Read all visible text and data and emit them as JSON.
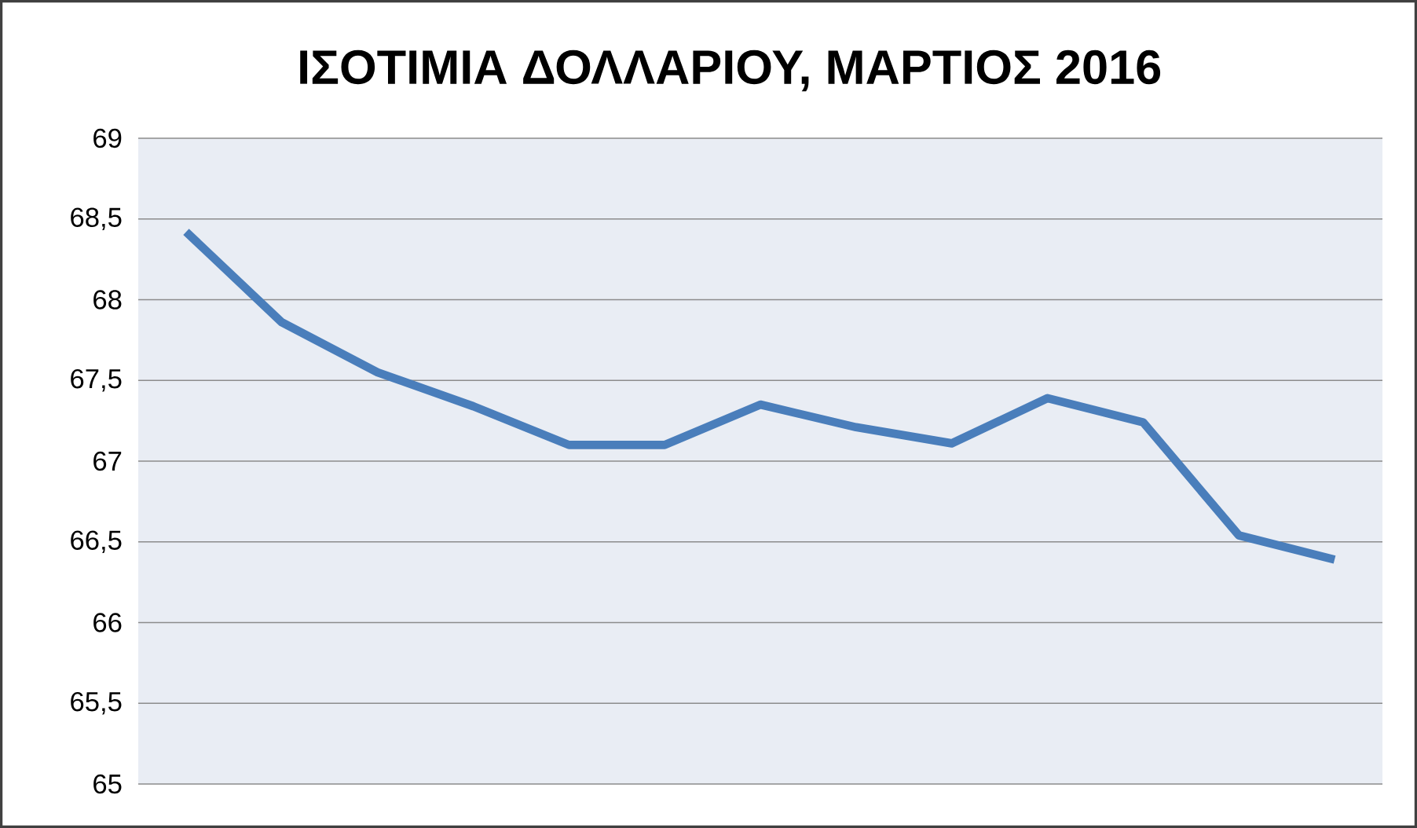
{
  "chart_data": {
    "type": "line",
    "title": "ΙΣΟΤΙΜΙΑ ΔΟΛΛΑΡΙΟΥ, ΜΑΡΤΙΟΣ 2016",
    "categories": [
      null,
      null,
      null,
      null,
      null,
      null,
      null,
      null,
      null,
      null,
      null,
      null,
      null
    ],
    "series": [
      {
        "color": "#4a7ebb",
        "values": [
          68.42,
          67.86,
          67.55,
          67.34,
          67.1,
          67.1,
          67.35,
          67.21,
          67.11,
          67.39,
          67.24,
          66.54,
          66.39
        ]
      }
    ],
    "ylim": [
      65,
      69
    ],
    "yticks": [
      65,
      {
        "value": 65.5,
        "label": "65,5"
      },
      66,
      {
        "value": 66.5,
        "label": "66,5"
      },
      67,
      {
        "value": 67.5,
        "label": "67,5"
      },
      68,
      {
        "value": 68.5,
        "label": "68,5"
      },
      69
    ],
    "grid": "y"
  }
}
